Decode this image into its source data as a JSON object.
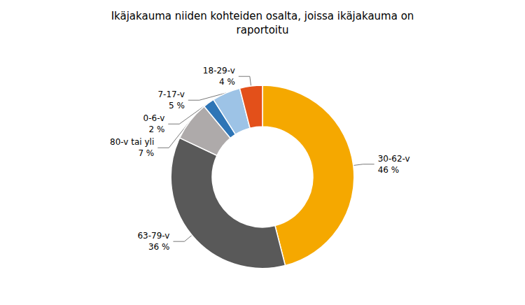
{
  "chart_data": {
    "type": "pie",
    "title": "Ikäjakauma niiden kohteiden osalta, joissa ikäjakauma on\nraportoitu",
    "categories": [
      "30-62-v",
      "63-79-v",
      "80-v tai yli",
      "0-6-v",
      "7-17-v",
      "18-29-v"
    ],
    "values": [
      46,
      36,
      7,
      2,
      5,
      4
    ],
    "value_labels": [
      "46 %",
      "36 %",
      "7 %",
      "2 %",
      "5 %",
      "4 %"
    ],
    "colors": [
      "#F5A800",
      "#595959",
      "#AEAAAA",
      "#2E75B6",
      "#9DC3E6",
      "#E3501A"
    ],
    "data_labels": true
  }
}
